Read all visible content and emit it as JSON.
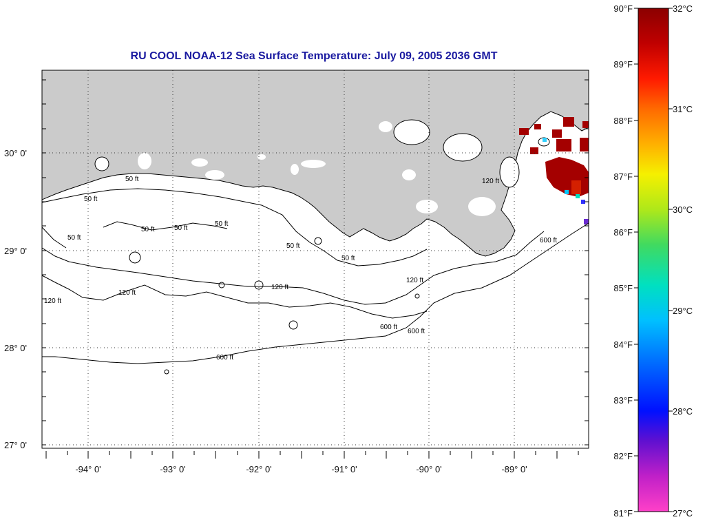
{
  "title": "RU COOL  NOAA-12  Sea Surface Temperature:  July 09, 2005 2036 GMT",
  "latitude_labels": [
    "30° 0'",
    "29° 0'",
    "28° 0'",
    "27° 0'"
  ],
  "longitude_labels": [
    "-94° 0'",
    "-93° 0'",
    "-92° 0'",
    "-91° 0'",
    "-90° 0'",
    "-89° 0'"
  ],
  "contour_labels": [
    "50 ft",
    "50 ft",
    "50 ft",
    "50 ft",
    "50 ft",
    "50 ft",
    "50 ft",
    "50 ft",
    "120 ft",
    "120 ft",
    "120 ft",
    "120 ft",
    "120 ft",
    "600 ft",
    "600 ft",
    "600 ft",
    "600 ft"
  ],
  "colorbar": {
    "fahrenheit_labels": [
      "90°F",
      "89°F",
      "88°F",
      "87°F",
      "86°F",
      "85°F",
      "84°F",
      "83°F",
      "82°F",
      "81°F"
    ],
    "celsius_labels": [
      "32°C",
      "31°C",
      "30°C",
      "29°C",
      "28°C",
      "27°C"
    ],
    "gradient_colors": [
      "#8b0000",
      "#d40000",
      "#ff2a00",
      "#ff7a00",
      "#ffc000",
      "#f5f500",
      "#9be61a",
      "#2ad96b",
      "#00e0c8",
      "#00c8ff",
      "#0080ff",
      "#0010ff",
      "#3010e0",
      "#a020c0",
      "#ff20d0",
      "#ff40c8"
    ]
  },
  "colors": {
    "land": "#cbcbcb",
    "sea": "#ffffff",
    "warm_sst": "#a40000",
    "title": "#1a1aa0"
  }
}
